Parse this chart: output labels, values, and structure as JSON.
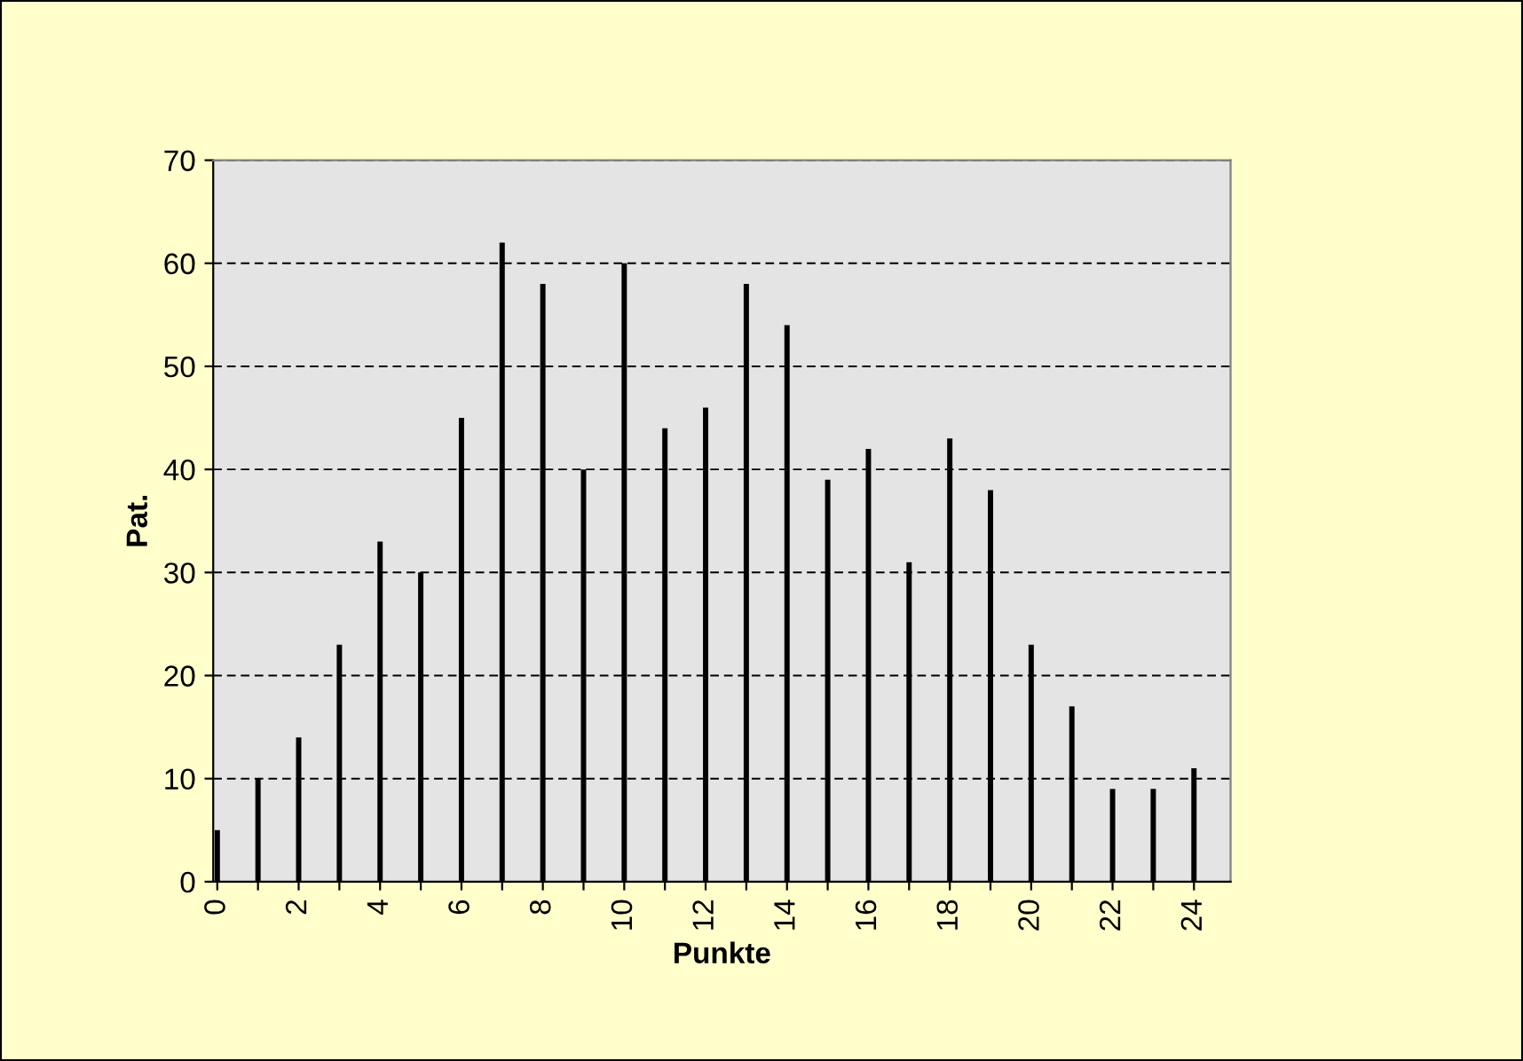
{
  "chart_data": {
    "type": "bar",
    "xlabel": "Punkte",
    "ylabel": "Pat.",
    "categories": [
      "0",
      null,
      "2",
      null,
      "4",
      null,
      "6",
      null,
      "8",
      null,
      "10",
      null,
      "12",
      null,
      "14",
      null,
      "16",
      null,
      "18",
      null,
      "20",
      null,
      "22",
      null,
      "24"
    ],
    "values": [
      5,
      10,
      14,
      23,
      33,
      30,
      45,
      62,
      58,
      40,
      60,
      44,
      46,
      58,
      54,
      39,
      42,
      31,
      43,
      38,
      23,
      17,
      9,
      9,
      11
    ],
    "color": "#000000",
    "ylim": [
      0,
      70
    ],
    "yticks": [
      0,
      10,
      20,
      30,
      40,
      50,
      60,
      70
    ],
    "grid": "y",
    "legend": false
  }
}
